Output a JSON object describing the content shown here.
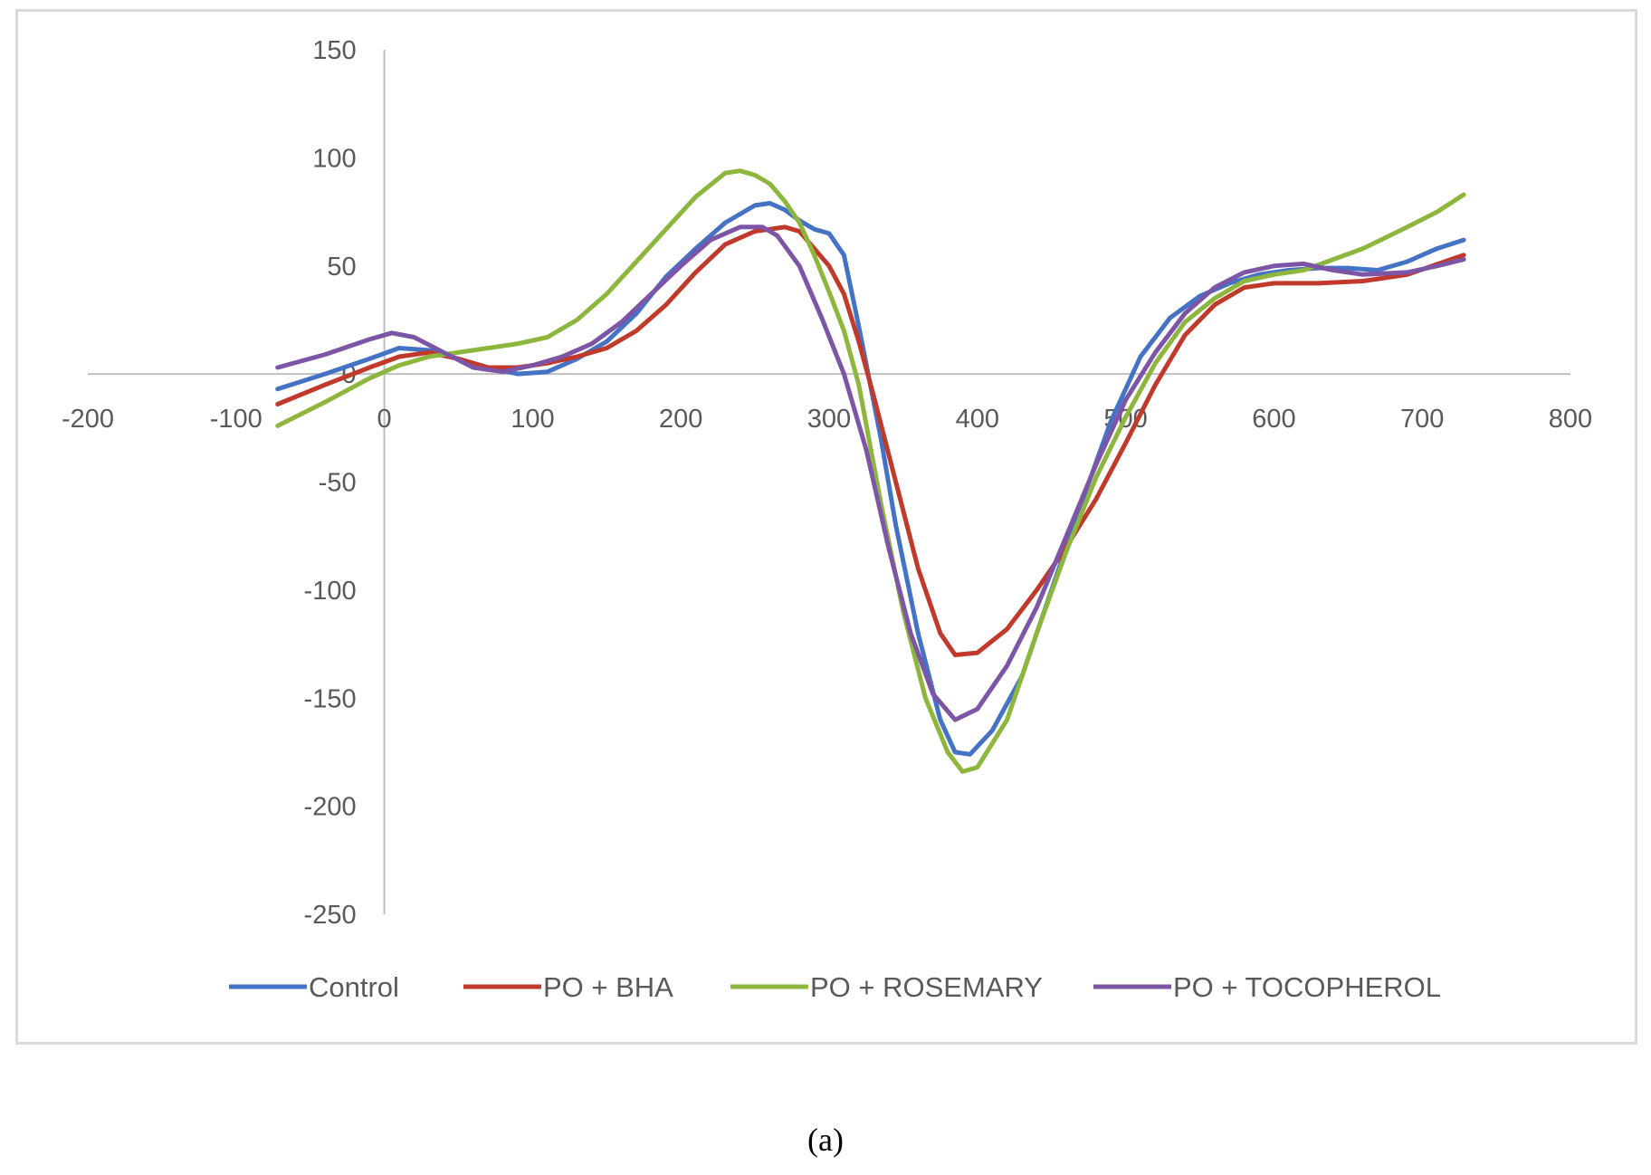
{
  "chart_data": {
    "type": "line",
    "title": "",
    "xlabel": "",
    "ylabel": "",
    "xlim": [
      -200,
      800
    ],
    "ylim": [
      -250,
      150
    ],
    "x_ticks": [
      -200,
      -100,
      0,
      100,
      200,
      300,
      400,
      500,
      600,
      700,
      800
    ],
    "y_ticks": [
      150,
      100,
      50,
      0,
      -50,
      -100,
      -150,
      -200,
      -250
    ],
    "grid": false,
    "legend_position": "bottom",
    "series": [
      {
        "name": "Control",
        "color": "#4472C4",
        "points": [
          [
            -72,
            -7
          ],
          [
            -40,
            0
          ],
          [
            -10,
            7
          ],
          [
            10,
            12
          ],
          [
            30,
            11
          ],
          [
            50,
            7
          ],
          [
            70,
            3
          ],
          [
            90,
            0
          ],
          [
            110,
            1
          ],
          [
            130,
            7
          ],
          [
            150,
            15
          ],
          [
            170,
            28
          ],
          [
            190,
            45
          ],
          [
            210,
            58
          ],
          [
            230,
            70
          ],
          [
            250,
            78
          ],
          [
            260,
            79
          ],
          [
            270,
            76
          ],
          [
            280,
            71
          ],
          [
            290,
            67
          ],
          [
            300,
            65
          ],
          [
            310,
            55
          ],
          [
            320,
            22
          ],
          [
            335,
            -30
          ],
          [
            345,
            -70
          ],
          [
            360,
            -120
          ],
          [
            375,
            -160
          ],
          [
            385,
            -175
          ],
          [
            395,
            -176
          ],
          [
            410,
            -165
          ],
          [
            430,
            -140
          ],
          [
            450,
            -100
          ],
          [
            470,
            -60
          ],
          [
            490,
            -22
          ],
          [
            510,
            8
          ],
          [
            530,
            26
          ],
          [
            550,
            36
          ],
          [
            570,
            42
          ],
          [
            590,
            46
          ],
          [
            610,
            48
          ],
          [
            630,
            49
          ],
          [
            650,
            49
          ],
          [
            670,
            48
          ],
          [
            690,
            52
          ],
          [
            710,
            58
          ],
          [
            728,
            62
          ]
        ]
      },
      {
        "name": "PO + BHA",
        "color": "#C0392B",
        "points": [
          [
            -72,
            -14
          ],
          [
            -40,
            -5
          ],
          [
            -10,
            3
          ],
          [
            10,
            8
          ],
          [
            30,
            10
          ],
          [
            50,
            7
          ],
          [
            70,
            3
          ],
          [
            90,
            3
          ],
          [
            110,
            5
          ],
          [
            130,
            8
          ],
          [
            150,
            12
          ],
          [
            170,
            20
          ],
          [
            190,
            32
          ],
          [
            210,
            47
          ],
          [
            230,
            60
          ],
          [
            250,
            66
          ],
          [
            260,
            67
          ],
          [
            270,
            68
          ],
          [
            280,
            66
          ],
          [
            290,
            58
          ],
          [
            300,
            50
          ],
          [
            310,
            37
          ],
          [
            320,
            15
          ],
          [
            330,
            -10
          ],
          [
            345,
            -50
          ],
          [
            360,
            -90
          ],
          [
            375,
            -120
          ],
          [
            385,
            -130
          ],
          [
            400,
            -129
          ],
          [
            420,
            -118
          ],
          [
            440,
            -100
          ],
          [
            460,
            -80
          ],
          [
            480,
            -58
          ],
          [
            500,
            -32
          ],
          [
            520,
            -5
          ],
          [
            540,
            18
          ],
          [
            560,
            32
          ],
          [
            580,
            40
          ],
          [
            600,
            42
          ],
          [
            630,
            42
          ],
          [
            660,
            43
          ],
          [
            690,
            46
          ],
          [
            728,
            55
          ]
        ]
      },
      {
        "name": "PO + ROSEMARY",
        "color": "#8DB63C",
        "points": [
          [
            -72,
            -24
          ],
          [
            -40,
            -13
          ],
          [
            -10,
            -2
          ],
          [
            10,
            4
          ],
          [
            30,
            8
          ],
          [
            50,
            10
          ],
          [
            70,
            12
          ],
          [
            90,
            14
          ],
          [
            110,
            17
          ],
          [
            130,
            25
          ],
          [
            150,
            37
          ],
          [
            170,
            52
          ],
          [
            190,
            67
          ],
          [
            210,
            82
          ],
          [
            230,
            93
          ],
          [
            240,
            94
          ],
          [
            250,
            92
          ],
          [
            260,
            88
          ],
          [
            270,
            80
          ],
          [
            280,
            70
          ],
          [
            290,
            55
          ],
          [
            300,
            38
          ],
          [
            310,
            20
          ],
          [
            320,
            -5
          ],
          [
            335,
            -60
          ],
          [
            350,
            -110
          ],
          [
            365,
            -150
          ],
          [
            380,
            -175
          ],
          [
            390,
            -184
          ],
          [
            400,
            -182
          ],
          [
            420,
            -160
          ],
          [
            440,
            -120
          ],
          [
            460,
            -82
          ],
          [
            480,
            -48
          ],
          [
            500,
            -20
          ],
          [
            520,
            5
          ],
          [
            540,
            24
          ],
          [
            560,
            35
          ],
          [
            580,
            43
          ],
          [
            600,
            46
          ],
          [
            620,
            48
          ],
          [
            640,
            53
          ],
          [
            660,
            58
          ],
          [
            690,
            68
          ],
          [
            710,
            75
          ],
          [
            728,
            83
          ]
        ]
      },
      {
        "name": "PO + TOCOPHEROL",
        "color": "#7D55A6",
        "points": [
          [
            -72,
            3
          ],
          [
            -40,
            9
          ],
          [
            -10,
            16
          ],
          [
            5,
            19
          ],
          [
            20,
            17
          ],
          [
            40,
            10
          ],
          [
            60,
            3
          ],
          [
            80,
            1
          ],
          [
            100,
            4
          ],
          [
            120,
            8
          ],
          [
            140,
            14
          ],
          [
            160,
            24
          ],
          [
            180,
            37
          ],
          [
            200,
            50
          ],
          [
            220,
            62
          ],
          [
            240,
            68
          ],
          [
            255,
            68
          ],
          [
            265,
            64
          ],
          [
            280,
            50
          ],
          [
            295,
            26
          ],
          [
            310,
            0
          ],
          [
            325,
            -35
          ],
          [
            340,
            -80
          ],
          [
            355,
            -120
          ],
          [
            370,
            -148
          ],
          [
            385,
            -160
          ],
          [
            400,
            -155
          ],
          [
            420,
            -135
          ],
          [
            440,
            -108
          ],
          [
            460,
            -75
          ],
          [
            480,
            -42
          ],
          [
            500,
            -12
          ],
          [
            520,
            10
          ],
          [
            540,
            28
          ],
          [
            560,
            40
          ],
          [
            580,
            47
          ],
          [
            600,
            50
          ],
          [
            620,
            51
          ],
          [
            640,
            48
          ],
          [
            660,
            46
          ],
          [
            690,
            47
          ],
          [
            710,
            50
          ],
          [
            728,
            53
          ]
        ]
      }
    ]
  },
  "caption": "(a)"
}
